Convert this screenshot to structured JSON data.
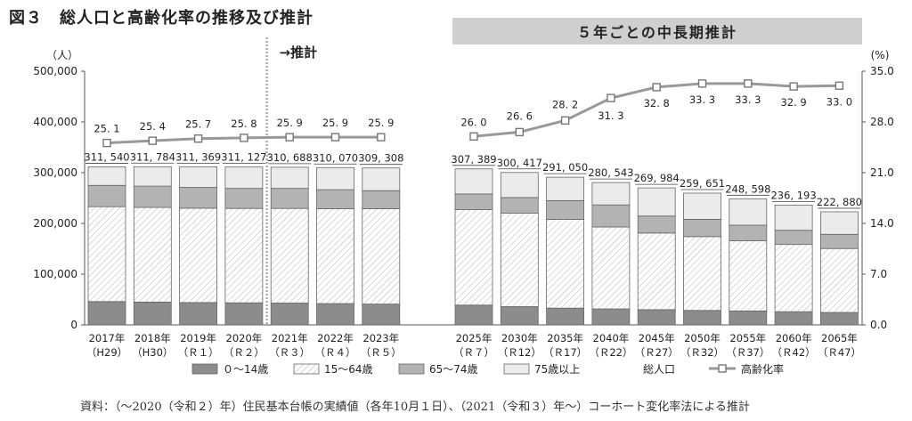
{
  "title": "図３　総人口と高齢化率の推移及び推計",
  "banner": "５年ごとの中長期推計",
  "forecast_label": "→推計",
  "source": "資料：（〜2020（令和２）年）住民基本台帳の実績値（各年10月１日）、（2021（令和３）年〜）コーホート変化率法による推計",
  "chart_data": {
    "type": "bar",
    "stacked": true,
    "left_unit": "（人）",
    "right_unit": "(%)",
    "categories": [
      "2017年",
      "2018年",
      "2019年",
      "2020年",
      "2021年",
      "2022年",
      "2023年",
      "2025年",
      "2030年",
      "2035年",
      "2040年",
      "2045年",
      "2050年",
      "2055年",
      "2060年",
      "2065年"
    ],
    "sublabels": [
      "（H29）",
      "（H30）",
      "（Ｒ１）",
      "（Ｒ２）",
      "（Ｒ３）",
      "（Ｒ４）",
      "（Ｒ５）",
      "（Ｒ７）",
      "（Ｒ12）",
      "（Ｒ17）",
      "（Ｒ22）",
      "（Ｒ27）",
      "（Ｒ32）",
      "（Ｒ37）",
      "（Ｒ42）",
      "（Ｒ47）"
    ],
    "y_left": {
      "min": 0,
      "max": 500000,
      "ticks": [
        "0",
        "100,000",
        "200,000",
        "300,000",
        "400,000",
        "500,000"
      ]
    },
    "y_right": {
      "min": 0,
      "max": 35,
      "ticks": [
        "0.0",
        "7.0",
        "14.0",
        "21.0",
        "28.0",
        "35.0"
      ]
    },
    "series": [
      {
        "name": "０〜14歳",
        "color": "#8c8c8c",
        "values": [
          46000,
          45000,
          44000,
          43500,
          43000,
          42000,
          41000,
          39000,
          36000,
          33000,
          31500,
          30000,
          28500,
          27500,
          26000,
          24500
        ]
      },
      {
        "name": "15〜64歳",
        "color": "#ffffff",
        "values": [
          187000,
          186500,
          186000,
          186000,
          186500,
          187000,
          188000,
          188000,
          184000,
          175000,
          161500,
          151000,
          145500,
          138500,
          132500,
          126000
        ]
      },
      {
        "name": "65〜74歳",
        "color": "#b3b3b3",
        "values": [
          42000,
          42000,
          41000,
          39500,
          39500,
          37500,
          35500,
          31000,
          31000,
          37000,
          43500,
          33500,
          34000,
          30500,
          28000,
          28000
        ]
      },
      {
        "name": "75歳以上",
        "color": "#ebebeb",
        "values": [
          36540,
          38284,
          40369,
          42127,
          41688,
          43570,
          44808,
          49389,
          49417,
          46050,
          44043,
          55484,
          51651,
          52098,
          49693,
          44380
        ]
      }
    ],
    "totals_name": "総人口",
    "totals": [
      311540,
      311784,
      311369,
      311127,
      310688,
      310070,
      309308,
      307389,
      300417,
      291050,
      280543,
      269984,
      259651,
      248598,
      236193,
      222880
    ],
    "totals_labels": [
      "311, 540",
      "311, 784",
      "311, 369",
      "311, 127",
      "310, 688",
      "310, 070",
      "309, 308",
      "307, 389",
      "300, 417",
      "291, 050",
      "280, 543",
      "269, 984",
      "259, 651",
      "248, 598",
      "236, 193",
      "222, 880"
    ],
    "line": {
      "name": "高齢化率",
      "color": "#999999",
      "values": [
        25.1,
        25.4,
        25.7,
        25.8,
        25.9,
        25.9,
        25.9,
        26.0,
        26.6,
        28.2,
        31.3,
        32.8,
        33.3,
        33.3,
        32.9,
        33.0
      ],
      "labels": [
        "25. 1",
        "25. 4",
        "25. 7",
        "25. 8",
        "25. 9",
        "25. 9",
        "25. 9",
        "26. 0",
        "26. 6",
        "28. 2",
        "31. 3",
        "32. 8",
        "33. 3",
        "33. 3",
        "32. 9",
        "33. 0"
      ]
    },
    "legend_position": "bottom"
  }
}
